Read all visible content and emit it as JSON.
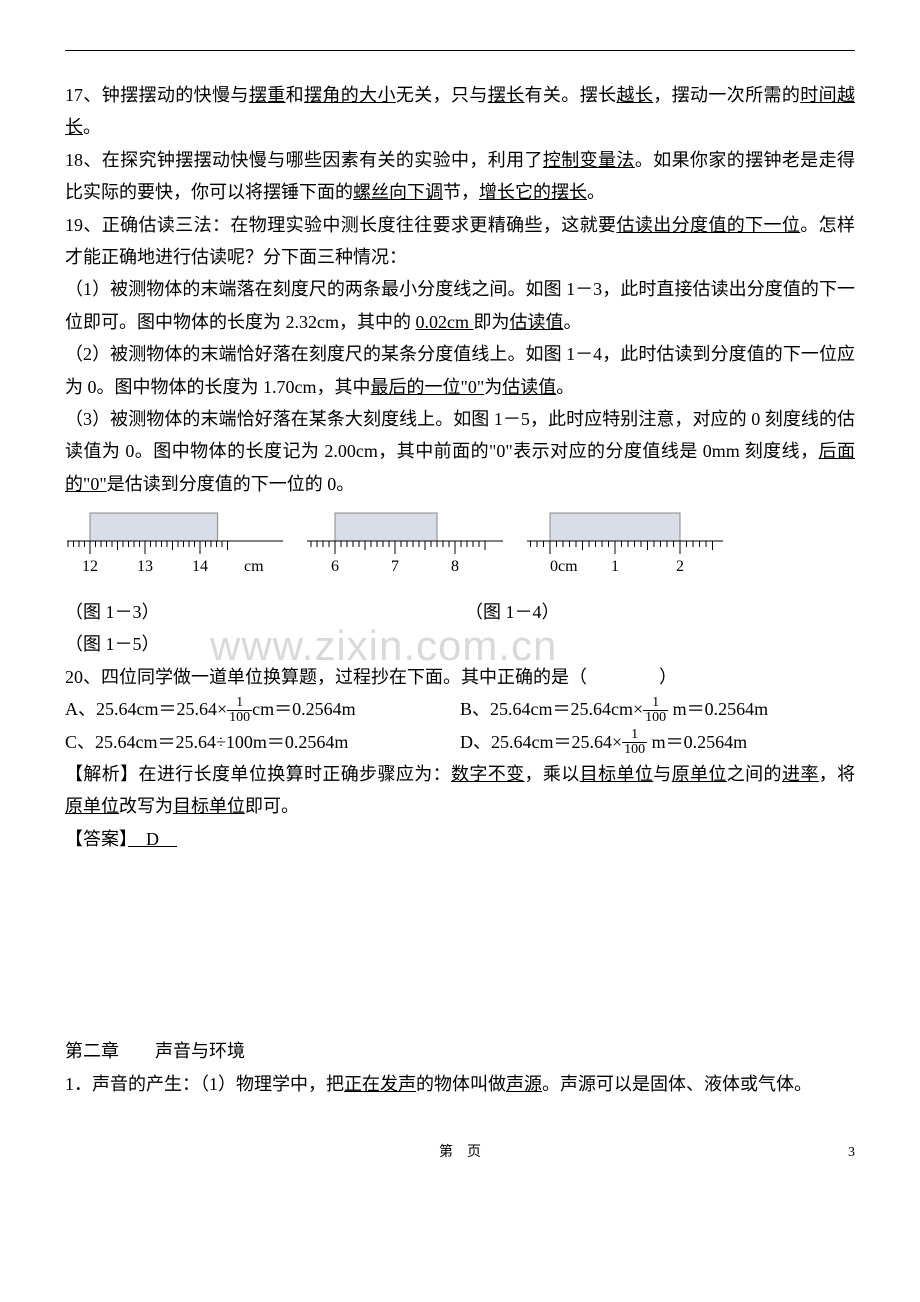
{
  "p17": {
    "prefix": "17、钟摆摆动的快慢与",
    "u1": "摆重",
    "t1": "和",
    "u2": "摆角的大小",
    "t2": "无关，只与",
    "u3": "摆长",
    "t3": "有关。摆长",
    "u4": "越长",
    "t4": "，摆动一次所需的",
    "u5": "时间越长",
    "t5": "。"
  },
  "p18": {
    "prefix": "18、在探究钟摆摆动快慢与哪些因素有关的实验中，利用了",
    "u1": "控制变量法",
    "t1": "。如果你家的摆钟老是走得比实际的要快，你可以将摆锤下面的",
    "u2": "螺丝向下调",
    "t2": "节，",
    "u3": "增长它的摆长",
    "t3": "。"
  },
  "p19a": {
    "prefix": "19、正确估读三法：在物理实验中测长度往往要求更精确些，这就要",
    "u1": "估读出分度值的下一位",
    "t1": "。怎样才能正确地进行估读呢？分下面三种情况："
  },
  "p19_1": {
    "prefix": "（1）被测物体的末端落在刻度尺的两条最小分度线之间。如图 1－3，此时直接估读出分度值的下一位即可。图中物体的长度为 2.32cm，其中的 ",
    "u1": "0.02cm ",
    "t1": "即为",
    "u2": "估读值",
    "t2": "。"
  },
  "p19_2": {
    "prefix": "（2）被测物体的末端恰好落在刻度尺的某条分度值线上。如图 1－4，此时估读到分度值的下一位应为 0。图中物体的长度为 1.70cm，其中",
    "u1": "最后的一位\"0\"",
    "t1": "为",
    "u2": "估读值",
    "t2": "。"
  },
  "p19_3": {
    "prefix": "（3）被测物体的末端恰好落在某条大刻度线上。如图 1－5，此时应特别注意，对应的 0 刻度线的估读值为 0。图中物体的长度记为 2.00cm，其中前面的\"0\"表示对应的分度值线是 0mm 刻度线，",
    "u1": "后面的\"0\"",
    "t1": "是估读到分度值的下一位的 0。"
  },
  "fig_labels": {
    "a": "（图 1－3）",
    "b": "（图 1－4）",
    "c": "（图 1－5）"
  },
  "p20": {
    "text": "20、四位同学做一道单位换算题，过程抄在下面。其中正确的是（　　　　）"
  },
  "options": {
    "a": {
      "pre": "A、25.64cm＝25.64×",
      "frac_num": "1",
      "frac_den": "100",
      "post": "cm＝0.2564m"
    },
    "b": {
      "pre": "B、25.64cm＝25.64cm×",
      "frac_num": "1",
      "frac_den": "100",
      "post": " m＝0.2564m"
    },
    "c": {
      "text": "C、25.64cm＝25.64÷100m＝0.2564m"
    },
    "d": {
      "pre": "D、25.64cm＝25.64×",
      "frac_num": "1",
      "frac_den": "100",
      "post": " m＝0.2564m"
    }
  },
  "analysis": {
    "label": "【解析】",
    "t1": "在进行长度单位换算时正确步骤应为：",
    "u1": "数字不变",
    "t2": "，乘以",
    "u2": "目标单位",
    "t3": "与",
    "u3": "原单位",
    "t4": "之间的",
    "u4": "进率",
    "t5": "，将",
    "u5": "原单位",
    "t6": "改写为",
    "u6": "目标单位",
    "t7": "即可。"
  },
  "answer": {
    "label": "【答案】",
    "val": "　D　"
  },
  "ch2": {
    "heading": "第二章　　声音与环境"
  },
  "ch2_1": {
    "prefix": "1．声音的产生：（1）物理学中，把",
    "u1": "正在发声",
    "t1": "的物体叫做",
    "u2": "声源",
    "t2": "。声源可以是固体、液体或气体。"
  },
  "watermark": "www.zixin.com.cn",
  "footer": {
    "label": "第　页",
    "num": "3"
  },
  "rulers": {
    "r1": {
      "labels": [
        "12",
        "13",
        "14"
      ],
      "unit": "cm",
      "block_start": 12,
      "block_end": 14.32
    },
    "r2": {
      "labels": [
        "6",
        "7",
        "8"
      ],
      "block_start": 6,
      "block_end": 7.7
    },
    "r3": {
      "labels": [
        "0cm",
        "1",
        "2"
      ],
      "block_start": 0,
      "block_end": 2.0
    }
  },
  "colors": {
    "block_fill": "#d8dde8",
    "block_stroke": "#888",
    "tick": "#000"
  }
}
